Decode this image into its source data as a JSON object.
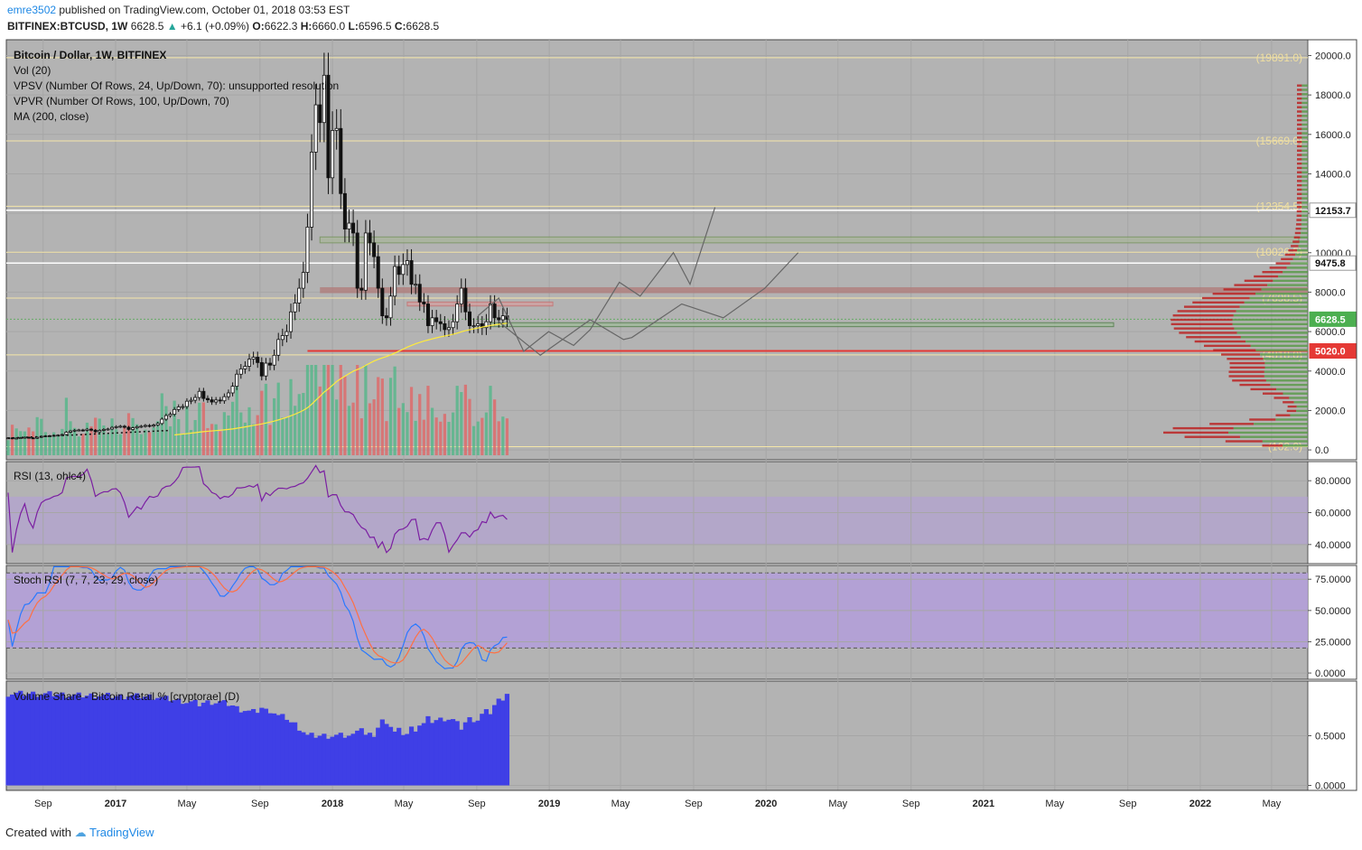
{
  "header": {
    "user": "emre3502",
    "published": " published on TradingView.com, October 01, 2018 03:53 EST",
    "symbol": "BITFINEX:BTCUSD, 1W",
    "last": "6628.5",
    "change": "+6.1 (+0.09%)",
    "o_label": "O:",
    "o": "6622.3",
    "h_label": "H:",
    "h": "6660.0",
    "l_label": "L:",
    "l": "6596.5",
    "c_label": "C:",
    "c": "6628.5"
  },
  "footer": {
    "created_with": "Created with",
    "brand": "TradingView"
  },
  "colors": {
    "bg": "#b3b3b3",
    "up": "#52b788",
    "down": "#e06666",
    "rsi": "#7b1fa2",
    "band": "#b39ddb",
    "stoch_k": "#2979ff",
    "stoch_d": "#ff7043",
    "retail": "#3f3fe6",
    "ma": "#ffeb3b",
    "fib": "#f5e6a8"
  },
  "chart_data": [
    {
      "type": "candlestick",
      "title": "Bitcoin / Dollar, 1W, BITFINEX",
      "indicators": [
        "Vol (20)",
        "VPSV (Number Of Rows, 24, Up/Down, 70): unsupported resolution",
        "VPVR (Number Of Rows, 100, Up/Down, 70)",
        "MA (200, close)"
      ],
      "ylim": [
        -500,
        20800
      ],
      "y_ticks": [
        "20000.0",
        "18000.0",
        "16000.0",
        "14000.0",
        "12000.0",
        "10000.0",
        "8000.0",
        "6000.0",
        "4000.0",
        "2000.0",
        "0.0"
      ],
      "y_tick_values": [
        20000,
        18000,
        16000,
        14000,
        12000,
        10000,
        8000,
        6000,
        4000,
        2000,
        0
      ],
      "x_labels": [
        "Sep",
        "2017",
        "May",
        "Sep",
        "2018",
        "May",
        "Sep",
        "2019",
        "May",
        "Sep",
        "2020",
        "May",
        "Sep",
        "2021",
        "May",
        "Sep",
        "2022",
        "May"
      ],
      "x_label_dates": [
        "2016-09-01",
        "2017-01-01",
        "2017-05-01",
        "2017-09-01",
        "2018-01-01",
        "2018-05-01",
        "2018-09-01",
        "2019-01-01",
        "2019-05-01",
        "2019-09-01",
        "2020-01-01",
        "2020-05-01",
        "2020-09-01",
        "2021-01-01",
        "2021-05-01",
        "2021-09-01",
        "2022-01-01",
        "2022-05-01"
      ],
      "x_range": [
        "2016-07-01",
        "2022-07-01"
      ],
      "levels": [
        {
          "label": "(19891.0)",
          "value": 19891
        },
        {
          "label": "(15669.0)",
          "value": 15669
        },
        {
          "label": "(12354.5)",
          "value": 12354.5
        },
        {
          "label": "(10026.5)",
          "value": 10026.5
        },
        {
          "label": "(7698.5)",
          "value": 7698.5
        },
        {
          "label": "(4818.0)",
          "value": 4818
        },
        {
          "label": "(162.0)",
          "value": 162
        }
      ],
      "price_tags": [
        {
          "label": "12153.7",
          "value": 12153.7,
          "style": "white"
        },
        {
          "label": "9475.8",
          "value": 9475.8,
          "style": "white"
        },
        {
          "label": "6628.5",
          "value": 6628.5,
          "style": "green"
        },
        {
          "label": "5020.0",
          "value": 5020,
          "style": "red"
        }
      ],
      "weekly_close": [
        610,
        575,
        600,
        620,
        640,
        610,
        590,
        640,
        690,
        710,
        720,
        740,
        750,
        780,
        900,
        960,
        1000,
        1010,
        990,
        1050,
        1000,
        920,
        990,
        1040,
        1060,
        1140,
        1180,
        1200,
        1150,
        1040,
        1120,
        1180,
        1200,
        1240,
        1210,
        1260,
        1340,
        1560,
        1740,
        1810,
        2050,
        2180,
        2200,
        2470,
        2520,
        2660,
        2970,
        2610,
        2540,
        2430,
        2530,
        2490,
        2700,
        2890,
        3230,
        3840,
        4110,
        4240,
        4600,
        4700,
        4430,
        3750,
        4400,
        4300,
        4800,
        5600,
        5800,
        6000,
        7000,
        7450,
        8200,
        9000,
        11300,
        15100,
        17500,
        16600,
        19000,
        13800,
        16200,
        16300,
        13000,
        11200,
        11500,
        11000,
        8200,
        8100,
        11000,
        10500,
        9800,
        8200,
        6800,
        6700,
        7800,
        9300,
        8900,
        9400,
        9600,
        8400,
        8400,
        7500,
        7400,
        6300,
        6700,
        6500,
        6400,
        6100,
        6200,
        6500,
        7400,
        8200,
        7000,
        6300,
        6300,
        6400,
        6200,
        6500,
        7400,
        6700,
        6600,
        6800,
        6628
      ]
    },
    {
      "type": "line",
      "title": "RSI (13, ohlc4)",
      "ylim": [
        28,
        92
      ],
      "y_ticks": [
        "80.0000",
        "60.0000",
        "40.0000"
      ],
      "y_tick_values": [
        80,
        60,
        40
      ],
      "band": [
        40,
        70
      ]
    },
    {
      "type": "line",
      "title": "Stoch RSI (7, 7, 23, 29, close)",
      "ylim": [
        -5,
        86
      ],
      "y_ticks": [
        "75.0000",
        "50.0000",
        "25.0000",
        "0.0000"
      ],
      "y_tick_values": [
        75,
        50,
        25,
        0
      ],
      "band": [
        20,
        80
      ]
    },
    {
      "type": "bar",
      "title": "Volume Share - Bitcoin Retail % [cryptorae] (D)",
      "ylim": [
        -0.05,
        1.05
      ],
      "y_ticks": [
        "0.5000",
        "0.0000"
      ],
      "y_tick_values": [
        0.5,
        0
      ]
    }
  ]
}
